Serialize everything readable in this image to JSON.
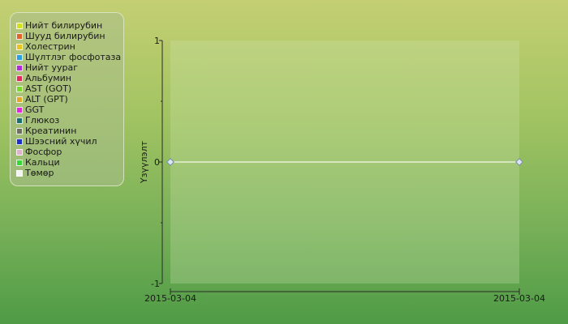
{
  "chart_data": {
    "type": "line",
    "ylabel": "Үзүүлэлт",
    "xlabel": "",
    "ylim": [
      -1,
      1
    ],
    "yticks": [
      -1,
      0,
      1
    ],
    "xticks": [
      "2015-03-04",
      "2015-03-04"
    ],
    "legend_position": "top-left",
    "grid": false,
    "series": [
      {
        "name": "Нийт билирубин",
        "color": "#d4e21c"
      },
      {
        "name": "Шууд билирубин",
        "color": "#e0642a"
      },
      {
        "name": "Холестрин",
        "color": "#e8c41c"
      },
      {
        "name": "Шүлтлэг фосфотаза",
        "color": "#2ba0e0"
      },
      {
        "name": "Нийт уураг",
        "color": "#b12ad8"
      },
      {
        "name": "Альбумин",
        "color": "#e02a5a"
      },
      {
        "name": "AST (GOT)",
        "color": "#7ad82a"
      },
      {
        "name": "ALT (GPT)",
        "color": "#e0a82a"
      },
      {
        "name": "GGT",
        "color": "#e02ad8"
      },
      {
        "name": "Глюкоз",
        "color": "#1e7070"
      },
      {
        "name": "Креатинин",
        "color": "#707060"
      },
      {
        "name": "Шээсний хүчил",
        "color": "#1a30c8"
      },
      {
        "name": "Фосфор",
        "color": "#e0b0d0"
      },
      {
        "name": "Кальци",
        "color": "#38d838"
      },
      {
        "name": "Төмөр",
        "color": "#f4f4f4"
      }
    ],
    "points": [
      {
        "x": "2015-03-04",
        "y": 0
      },
      {
        "x": "2015-03-04",
        "y": 0
      }
    ]
  }
}
